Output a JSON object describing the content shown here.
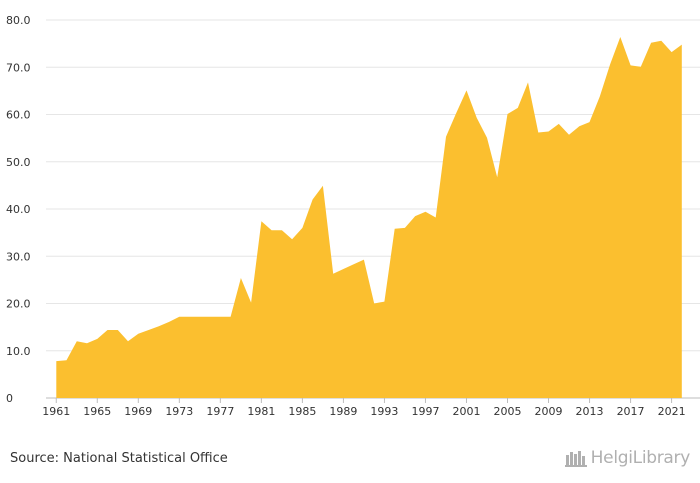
{
  "chart_data": {
    "type": "area",
    "title": "",
    "xlabel": "",
    "ylabel": "",
    "ylim": [
      0,
      80
    ],
    "y_ticks": [
      "0",
      "10.0",
      "20.0",
      "30.0",
      "40.0",
      "50.0",
      "60.0",
      "70.0",
      "80.0"
    ],
    "x_ticks": [
      "1961",
      "1965",
      "1969",
      "1973",
      "1977",
      "1981",
      "1985",
      "1989",
      "1993",
      "1997",
      "2001",
      "2005",
      "2009",
      "2013",
      "2017",
      "2021"
    ],
    "grid": "horizontal",
    "fill_color": "#FBBF2F",
    "x": [
      1961,
      1962,
      1963,
      1964,
      1965,
      1966,
      1967,
      1968,
      1969,
      1970,
      1971,
      1972,
      1973,
      1974,
      1975,
      1976,
      1977,
      1978,
      1979,
      1980,
      1981,
      1982,
      1983,
      1984,
      1985,
      1986,
      1987,
      1988,
      1989,
      1990,
      1991,
      1992,
      1993,
      1994,
      1995,
      1996,
      1997,
      1998,
      1999,
      2000,
      2001,
      2002,
      2003,
      2004,
      2005,
      2006,
      2007,
      2008,
      2009,
      2010,
      2011,
      2012,
      2013,
      2014,
      2015,
      2016,
      2017,
      2018,
      2019,
      2020,
      2021,
      2022
    ],
    "values": [
      7.8,
      8.0,
      12.0,
      11.6,
      12.5,
      14.4,
      14.4,
      12.0,
      13.6,
      14.4,
      15.2,
      16.1,
      17.2,
      17.2,
      17.2,
      17.2,
      17.2,
      17.2,
      25.4,
      20.2,
      37.4,
      35.5,
      35.5,
      33.6,
      36.0,
      42.0,
      44.9,
      26.3,
      27.3,
      28.3,
      29.3,
      20.0,
      20.4,
      35.8,
      36.0,
      38.5,
      39.4,
      38.2,
      55.3,
      60.3,
      65.1,
      59.3,
      55.1,
      46.7,
      60.1,
      61.4,
      66.8,
      56.2,
      56.4,
      58.0,
      55.7,
      57.5,
      58.4,
      63.8,
      70.6,
      76.4,
      70.4,
      70.1,
      75.2,
      75.6,
      73.2,
      74.8
    ]
  },
  "footer": {
    "source": "Source: National Statistical Office",
    "brand": "HelgiLibrary",
    "brand_icon": "helgi-library-logo-icon"
  }
}
